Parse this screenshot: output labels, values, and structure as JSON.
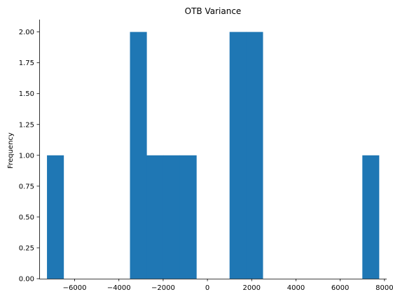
{
  "chart_data": {
    "type": "bar",
    "title": "OTB Variance",
    "xlabel": "",
    "ylabel": "Frequency",
    "bin_edges": [
      -7250,
      -6500,
      -5750,
      -5000,
      -4250,
      -3500,
      -2750,
      -2000,
      -1250,
      -500,
      250,
      1000,
      1750,
      2500,
      3250,
      4000,
      4750,
      5500,
      6250,
      7000,
      7750
    ],
    "frequencies": [
      1,
      0,
      0,
      0,
      0,
      2,
      1,
      1,
      1,
      0,
      0,
      2,
      2,
      0,
      0,
      0,
      0,
      0,
      0,
      1
    ],
    "xlim": [
      -7600,
      8100
    ],
    "ylim": [
      0,
      2.1
    ],
    "x_ticks": [
      -6000,
      -4000,
      -2000,
      0,
      2000,
      4000,
      6000,
      8000
    ],
    "x_tick_labels": [
      "−6000",
      "−4000",
      "−2000",
      "0",
      "2000",
      "4000",
      "6000",
      "8000"
    ],
    "y_ticks": [
      0,
      0.25,
      0.5,
      0.75,
      1.0,
      1.25,
      1.5,
      1.75,
      2.0
    ],
    "y_tick_labels": [
      "0.00",
      "0.25",
      "0.50",
      "0.75",
      "1.00",
      "1.25",
      "1.50",
      "1.75",
      "2.00"
    ],
    "grid": false,
    "bar_color": "#1f77b4"
  }
}
